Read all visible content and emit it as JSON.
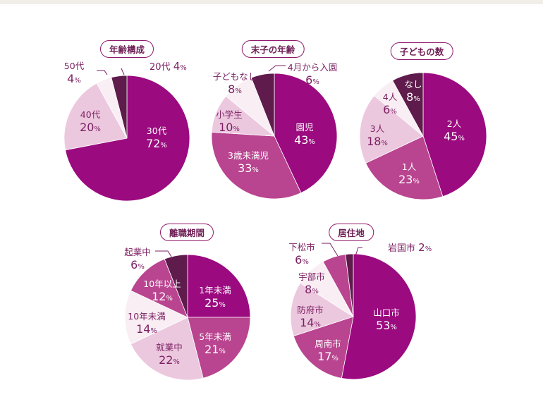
{
  "chart_data": [
    {
      "type": "pie",
      "title": "年齢構成",
      "slices": [
        {
          "label": "30代",
          "value": 72,
          "display": "72",
          "color": "#9b0a7f"
        },
        {
          "label": "40代",
          "value": 20,
          "display": "20",
          "color": "#ecc8df"
        },
        {
          "label": "50代",
          "value": 4,
          "display": "4",
          "color": "#f8eef4"
        },
        {
          "label": "20代",
          "value": 4,
          "display": "4",
          "color": "#5e1b4c"
        }
      ]
    },
    {
      "type": "pie",
      "title": "末子の年齢",
      "slices": [
        {
          "label": "園児",
          "value": 43,
          "display": "43",
          "color": "#9b0a7f"
        },
        {
          "label": "3歳未満児",
          "value": 33,
          "display": "33",
          "color": "#b9448f"
        },
        {
          "label": "小学生",
          "value": 10,
          "display": "10",
          "color": "#ecc8df"
        },
        {
          "label": "子どもなし",
          "value": 8,
          "display": "8",
          "color": "#f8eef4"
        },
        {
          "label": "4月から入園",
          "value": 6,
          "display": "6",
          "color": "#5e1b4c"
        }
      ]
    },
    {
      "type": "pie",
      "title": "子どもの数",
      "slices": [
        {
          "label": "2人",
          "value": 45,
          "display": "45",
          "color": "#9b0a7f"
        },
        {
          "label": "1人",
          "value": 23,
          "display": "23",
          "color": "#b9448f"
        },
        {
          "label": "3人",
          "value": 18,
          "display": "18",
          "color": "#ecc8df"
        },
        {
          "label": "4人",
          "value": 6,
          "display": "6",
          "color": "#f8eef4"
        },
        {
          "label": "なし",
          "value": 8,
          "display": "8",
          "color": "#5e1b4c"
        }
      ]
    },
    {
      "type": "pie",
      "title": "離職期間",
      "slices": [
        {
          "label": "1年未満",
          "value": 25,
          "display": "25",
          "color": "#9b0a7f"
        },
        {
          "label": "5年未満",
          "value": 21,
          "display": "21",
          "color": "#b9448f"
        },
        {
          "label": "就業中",
          "value": 22,
          "display": "22",
          "color": "#ecc8df"
        },
        {
          "label": "10年未満",
          "value": 14,
          "display": "14",
          "color": "#f8eef4"
        },
        {
          "label": "10年以上",
          "value": 12,
          "display": "12",
          "color": "#b9448f"
        },
        {
          "label": "起業中",
          "value": 6,
          "display": "6",
          "color": "#5e1b4c"
        }
      ]
    },
    {
      "type": "pie",
      "title": "居住地",
      "slices": [
        {
          "label": "山口市",
          "value": 53,
          "display": "53",
          "color": "#9b0a7f"
        },
        {
          "label": "周南市",
          "value": 17,
          "display": "17",
          "color": "#b9448f"
        },
        {
          "label": "防府市",
          "value": 14,
          "display": "14",
          "color": "#ecc8df"
        },
        {
          "label": "宇部市",
          "value": 8,
          "display": "8",
          "color": "#f8eef4"
        },
        {
          "label": "下松市",
          "value": 6,
          "display": "6",
          "color": "#b9448f"
        },
        {
          "label": "岩国市",
          "value": 2,
          "display": "2",
          "color": "#5e1b4c"
        }
      ]
    }
  ],
  "percent_symbol": "%"
}
